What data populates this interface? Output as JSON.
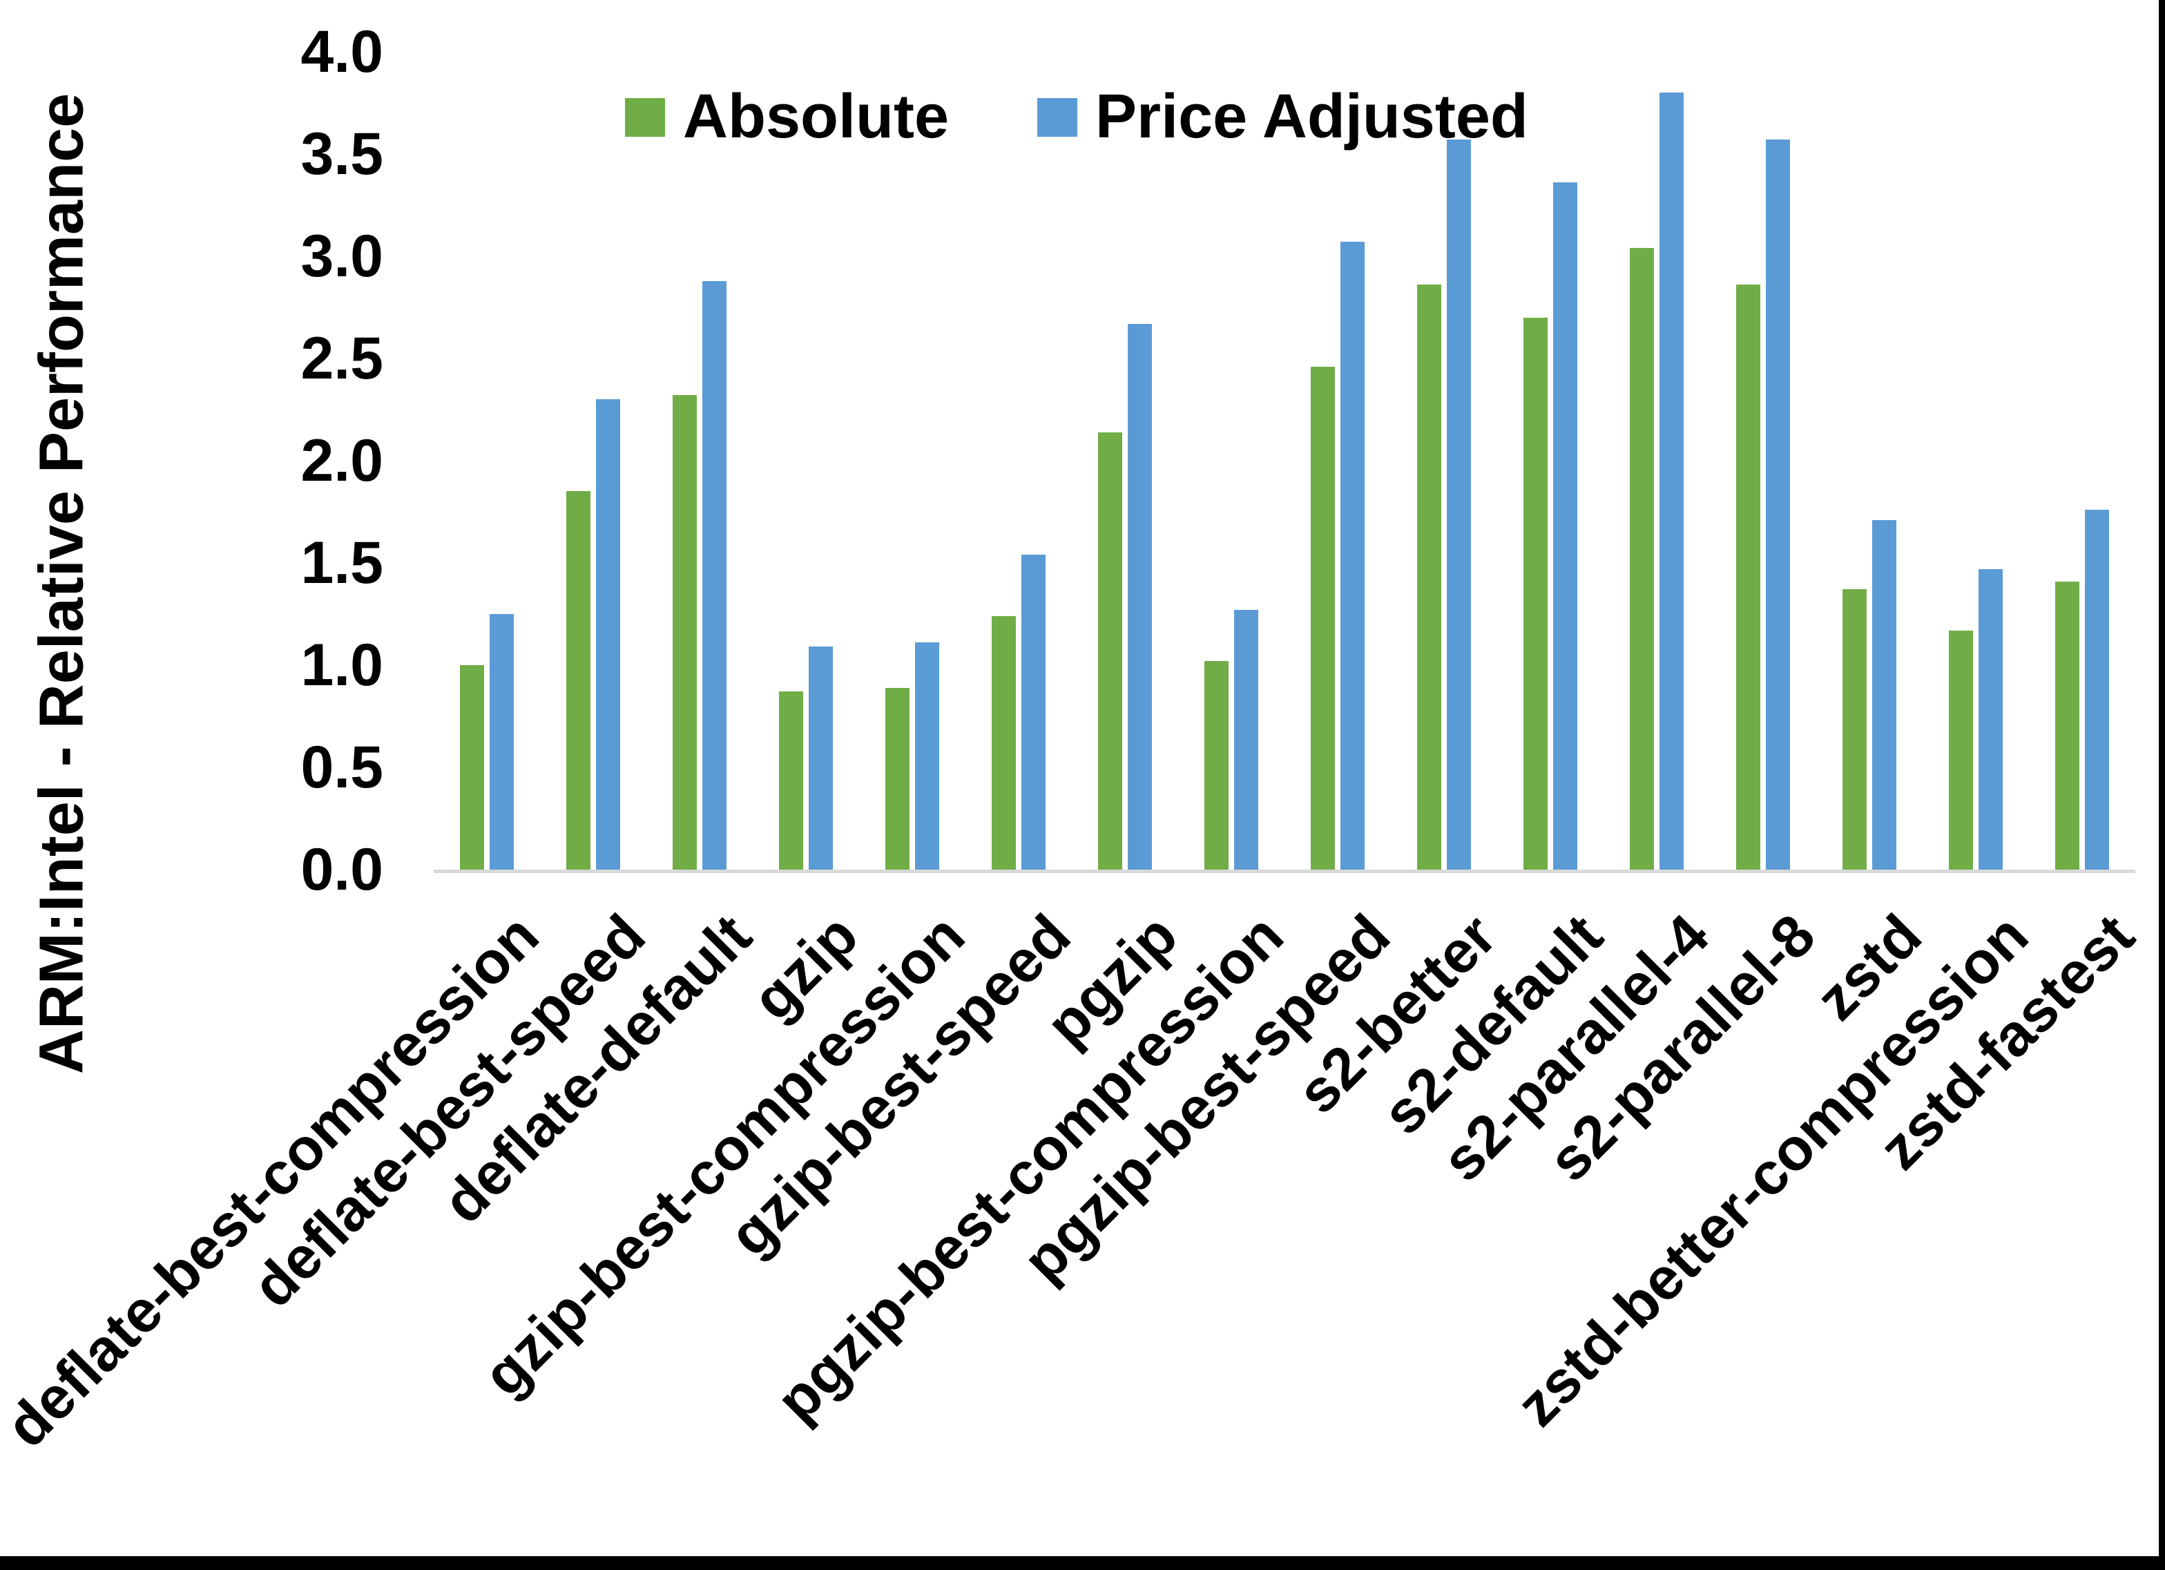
{
  "chart_data": {
    "type": "bar",
    "title": "",
    "ylabel": "ARM:Intel - Relative Performance",
    "xlabel": "",
    "ylim": [
      0,
      4
    ],
    "ytick_step": 0.5,
    "yticks": [
      "0.0",
      "0.5",
      "1.0",
      "1.5",
      "2.0",
      "2.5",
      "3.0",
      "3.5",
      "4.0"
    ],
    "grid": false,
    "legend_position": "top-center",
    "categories": [
      "deflate-best-compression",
      "deflate-best-speed",
      "deflate-default",
      "gzip",
      "gzip-best-compression",
      "gzip-best-speed",
      "pgzip",
      "pgzip-best-compression",
      "pgzip-best-speed",
      "s2-better",
      "s2-default",
      "s2-parallel-4",
      "s2-parallel-8",
      "zstd",
      "zstd-better-compression",
      "zstd-fastest"
    ],
    "series": [
      {
        "name": "Absolute",
        "color": "#70AD47",
        "values": [
          1.0,
          1.85,
          2.32,
          0.87,
          0.89,
          1.24,
          2.14,
          1.02,
          2.46,
          2.86,
          2.7,
          3.04,
          2.86,
          1.37,
          1.17,
          1.41
        ]
      },
      {
        "name": "Price Adjusted",
        "color": "#5B9BD5",
        "values": [
          1.25,
          2.3,
          2.88,
          1.09,
          1.11,
          1.54,
          2.67,
          1.27,
          3.07,
          3.57,
          3.36,
          3.8,
          3.57,
          1.71,
          1.47,
          1.76
        ]
      }
    ],
    "axis_line_color": "#D9D9D9",
    "text_color": "#000000"
  }
}
